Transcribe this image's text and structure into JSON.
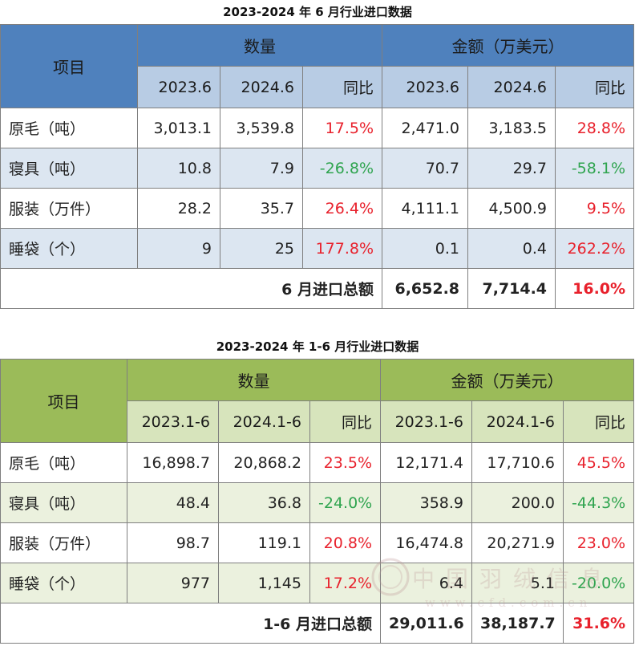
{
  "colors": {
    "positive": "#e8212c",
    "negative": "#2fa44f",
    "blue_header": "#4f81bd",
    "green_header": "#9bbb59"
  },
  "table1": {
    "title": "2023-2024 年 6 月行业进口数据",
    "header": {
      "item": "项目",
      "quantity": "数量",
      "amount": "金额（万美元）",
      "cols": [
        "2023.6",
        "2024.6",
        "同比",
        "2023.6",
        "2024.6",
        "同比"
      ]
    },
    "rows": [
      {
        "label": "原毛（吨）",
        "q1": "3,013.1",
        "q2": "3,539.8",
        "qyoy": "17.5%",
        "a1": "2,471.0",
        "a2": "3,183.5",
        "ayoy": "28.8%"
      },
      {
        "label": "寝具（吨）",
        "q1": "10.8",
        "q2": "7.9",
        "qyoy": "-26.8%",
        "a1": "70.7",
        "a2": "29.7",
        "ayoy": "-58.1%"
      },
      {
        "label": "服装（万件）",
        "q1": "28.2",
        "q2": "35.7",
        "qyoy": "26.4%",
        "a1": "4,111.1",
        "a2": "4,500.9",
        "ayoy": "9.5%"
      },
      {
        "label": "睡袋（个）",
        "q1": "9",
        "q2": "25",
        "qyoy": "177.8%",
        "a1": "0.1",
        "a2": "0.4",
        "ayoy": "262.2%"
      }
    ],
    "total": {
      "label": "6 月进口总额",
      "a1": "6,652.8",
      "a2": "7,714.4",
      "ayoy": "16.0%"
    }
  },
  "table2": {
    "title": "2023-2024 年 1-6 月行业进口数据",
    "header": {
      "item": "项目",
      "quantity": "数量",
      "amount": "金额（万美元）",
      "cols": [
        "2023.1-6",
        "2024.1-6",
        "同比",
        "2023.1-6",
        "2024.1-6",
        "同比"
      ]
    },
    "rows": [
      {
        "label": "原毛（吨）",
        "q1": "16,898.7",
        "q2": "20,868.2",
        "qyoy": "23.5%",
        "a1": "12,171.4",
        "a2": "17,710.6",
        "ayoy": "45.5%"
      },
      {
        "label": "寝具（吨）",
        "q1": "48.4",
        "q2": "36.8",
        "qyoy": "-24.0%",
        "a1": "358.9",
        "a2": "200.0",
        "ayoy": "-44.3%"
      },
      {
        "label": "服装（万件）",
        "q1": "98.7",
        "q2": "119.1",
        "qyoy": "20.8%",
        "a1": "16,474.8",
        "a2": "20,271.9",
        "ayoy": "23.0%"
      },
      {
        "label": "睡袋（个）",
        "q1": "977",
        "q2": "1,145",
        "qyoy": "17.2%",
        "a1": "6.4",
        "a2": "5.1",
        "ayoy": "-20.0%"
      }
    ],
    "total": {
      "label": "1-6 月进口总额",
      "a1": "29,011.6",
      "a2": "38,187.7",
      "ayoy": "31.6%"
    }
  },
  "watermark": {
    "text": "中国羽绒信息",
    "url": "www.cfd.com.cn",
    "icon": "seal-logo"
  }
}
